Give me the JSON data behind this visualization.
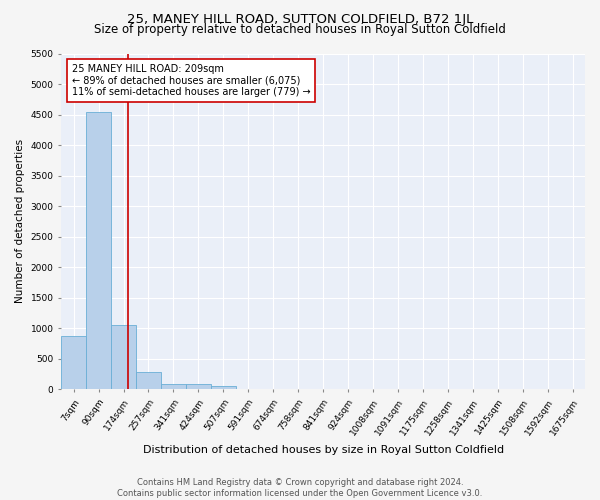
{
  "title": "25, MANEY HILL ROAD, SUTTON COLDFIELD, B72 1JL",
  "subtitle": "Size of property relative to detached houses in Royal Sutton Coldfield",
  "xlabel": "Distribution of detached houses by size in Royal Sutton Coldfield",
  "ylabel": "Number of detached properties",
  "footnote1": "Contains HM Land Registry data © Crown copyright and database right 2024.",
  "footnote2": "Contains public sector information licensed under the Open Government Licence v3.0.",
  "bar_labels": [
    "7sqm",
    "90sqm",
    "174sqm",
    "257sqm",
    "341sqm",
    "424sqm",
    "507sqm",
    "591sqm",
    "674sqm",
    "758sqm",
    "841sqm",
    "924sqm",
    "1008sqm",
    "1091sqm",
    "1175sqm",
    "1258sqm",
    "1341sqm",
    "1425sqm",
    "1508sqm",
    "1592sqm",
    "1675sqm"
  ],
  "bar_values": [
    880,
    4550,
    1060,
    280,
    95,
    80,
    55,
    0,
    0,
    0,
    0,
    0,
    0,
    0,
    0,
    0,
    0,
    0,
    0,
    0,
    0
  ],
  "bar_color": "#b8d0ea",
  "bar_edge_color": "#6aaed6",
  "vline_x": 2.18,
  "annotation_text": "25 MANEY HILL ROAD: 209sqm\n← 89% of detached houses are smaller (6,075)\n11% of semi-detached houses are larger (779) →",
  "annotation_box_color": "#ffffff",
  "annotation_box_edge": "#cc0000",
  "vline_color": "#cc0000",
  "ylim": [
    0,
    5500
  ],
  "yticks": [
    0,
    500,
    1000,
    1500,
    2000,
    2500,
    3000,
    3500,
    4000,
    4500,
    5000,
    5500
  ],
  "bg_color": "#eaeff8",
  "grid_color": "#ffffff",
  "fig_bg": "#f5f5f5",
  "title_fontsize": 9.5,
  "subtitle_fontsize": 8.5,
  "xlabel_fontsize": 8.0,
  "ylabel_fontsize": 7.5,
  "tick_fontsize": 6.5,
  "annotation_fontsize": 7.0,
  "footnote_fontsize": 6.0
}
